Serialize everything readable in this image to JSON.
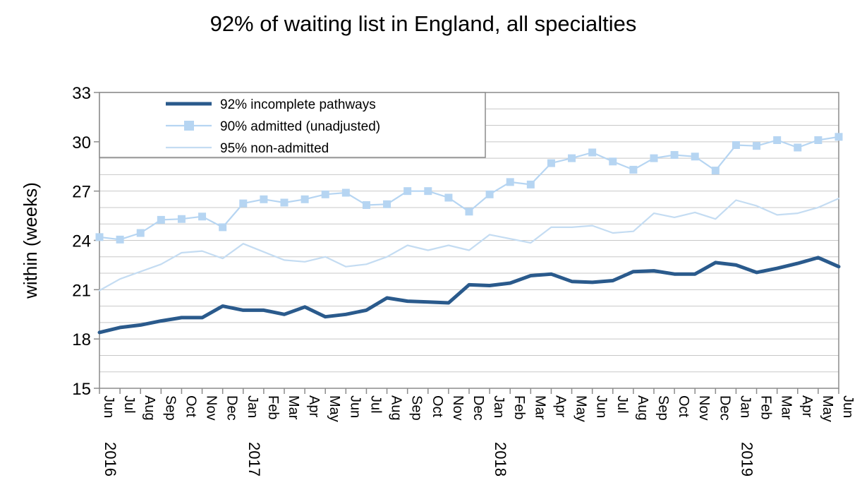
{
  "chart_data": {
    "type": "line",
    "title": "92% of waiting list in England, all specialties",
    "ylabel": "within  (weeks)",
    "xlabel": "",
    "ylim": [
      15,
      33
    ],
    "yticks": [
      15,
      18,
      21,
      24,
      27,
      30,
      33
    ],
    "grid": true,
    "legend_position": "top-left",
    "categories": [
      "Jun",
      "Jul",
      "Aug",
      "Sep",
      "Oct",
      "Nov",
      "Dec",
      "Jan",
      "Feb",
      "Mar",
      "Apr",
      "May",
      "Jun",
      "Jul",
      "Aug",
      "Sep",
      "Oct",
      "Nov",
      "Dec",
      "Jan",
      "Feb",
      "Mar",
      "Apr",
      "May",
      "Jun",
      "Jul",
      "Aug",
      "Sep",
      "Oct",
      "Nov",
      "Dec",
      "Jan",
      "Feb",
      "Mar",
      "Apr",
      "May",
      "Jun"
    ],
    "year_labels": [
      {
        "index": 0,
        "label": "2016"
      },
      {
        "index": 7,
        "label": "2017"
      },
      {
        "index": 19,
        "label": "2018"
      },
      {
        "index": 31,
        "label": "2019"
      }
    ],
    "series": [
      {
        "name": "92% incomplete pathways",
        "color": "#2a5a8c",
        "marker": "none",
        "values": [
          18.4,
          18.7,
          18.85,
          19.1,
          19.3,
          19.3,
          20.0,
          19.75,
          19.75,
          19.5,
          19.95,
          19.35,
          19.5,
          19.75,
          20.5,
          20.3,
          20.25,
          20.2,
          21.3,
          21.25,
          21.4,
          21.85,
          21.95,
          21.5,
          21.45,
          21.55,
          22.1,
          22.15,
          21.95,
          21.95,
          22.65,
          22.5,
          22.05,
          22.3,
          22.6,
          22.95,
          22.4
        ]
      },
      {
        "name": "90% admitted (unadjusted)",
        "color": "#b6d5f2",
        "marker": "square",
        "values": [
          24.2,
          24.05,
          24.45,
          25.25,
          25.3,
          25.45,
          24.8,
          26.25,
          26.5,
          26.3,
          26.5,
          26.8,
          26.9,
          26.15,
          26.2,
          27.0,
          27.0,
          26.6,
          25.75,
          26.8,
          27.55,
          27.4,
          28.7,
          29.0,
          29.35,
          28.8,
          28.3,
          29.0,
          29.2,
          29.1,
          28.25,
          29.8,
          29.75,
          30.1,
          29.65,
          30.1,
          30.3
        ]
      },
      {
        "name": "95% non-admitted",
        "color": "#c4dcf2",
        "marker": "none",
        "values": [
          20.95,
          21.65,
          22.1,
          22.55,
          23.25,
          23.35,
          22.9,
          23.8,
          23.3,
          22.8,
          22.7,
          23.0,
          22.4,
          22.55,
          23.0,
          23.7,
          23.4,
          23.7,
          23.4,
          24.35,
          24.1,
          23.85,
          24.8,
          24.8,
          24.9,
          24.45,
          24.55,
          25.65,
          25.4,
          25.7,
          25.3,
          26.45,
          26.1,
          25.55,
          25.65,
          26.0,
          26.55
        ]
      }
    ]
  }
}
